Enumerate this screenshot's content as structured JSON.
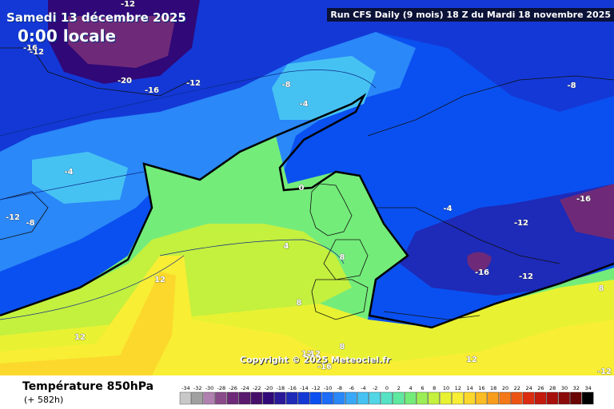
{
  "header": {
    "date": "Samedi 13 décembre 2025",
    "time": "0:00 locale",
    "run": "Run CFS Daily (9 mois) 18 Z du Mardi 18 novembre 2025"
  },
  "copyright": "Copyright © 2025 Meteociel.fr",
  "footer": {
    "title": "Température 850hPa",
    "subtitle": "(+ 582h)"
  },
  "legend": {
    "values": [
      "-34",
      "-32",
      "-30",
      "-28",
      "-26",
      "-24",
      "-22",
      "-20",
      "-18",
      "-16",
      "-14",
      "-12",
      "-10",
      "-8",
      "-6",
      "-4",
      "-2",
      "0",
      "2",
      "4",
      "6",
      "8",
      "10",
      "12",
      "14",
      "16",
      "18",
      "20",
      "22",
      "24",
      "26",
      "28",
      "30",
      "32",
      "34"
    ],
    "colors": [
      "#c8c8c8",
      "#a0a0a0",
      "#b080b0",
      "#8a4a8a",
      "#6e2a78",
      "#5a1a6e",
      "#46106a",
      "#300878",
      "#2a1a9a",
      "#1e2ab8",
      "#1438d6",
      "#0a50f0",
      "#1c6cf8",
      "#2a88f8",
      "#3aa8f8",
      "#46c2f2",
      "#52d6e6",
      "#56e2c4",
      "#5ee8a0",
      "#74ec7a",
      "#9cee56",
      "#c4f03e",
      "#e8f232",
      "#f8ee34",
      "#fcd82c",
      "#fcbc24",
      "#f89c1c",
      "#f47818",
      "#ec5414",
      "#dc2c10",
      "#c41a0e",
      "#a8100c",
      "#8a0a0a",
      "#6a0606",
      "#000000"
    ]
  },
  "contour_labels": [
    "-16",
    "-12",
    "-12",
    "-20",
    "-16",
    "-12",
    "-8",
    "-4",
    "-8",
    "-4",
    "-12",
    "-8",
    "0",
    "-4",
    "-12",
    "-16",
    "-16",
    "-12",
    "8",
    "4",
    "8",
    "12",
    "8",
    "12",
    "12",
    "8",
    "12",
    "-12",
    "-16",
    "-12"
  ],
  "colors": {
    "zero_isotherm": "#000000",
    "warm": "#f8ee34",
    "cold": "#0a50f0"
  }
}
